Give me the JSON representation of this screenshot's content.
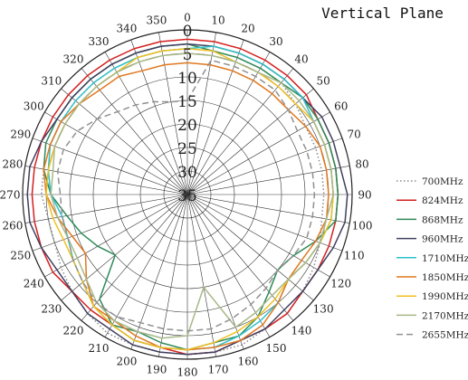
{
  "chart_data": {
    "type": "polar-line",
    "title": "Vertical Plane",
    "radial_axis": {
      "min": -35,
      "max": 0,
      "ticks": [
        0,
        5,
        10,
        15,
        20,
        25,
        30,
        35
      ]
    },
    "angle_axis": {
      "step": 10,
      "direction": "clockwise",
      "zero": "top"
    },
    "angles": [
      0,
      10,
      20,
      30,
      40,
      50,
      60,
      70,
      80,
      90,
      100,
      110,
      120,
      130,
      140,
      150,
      160,
      170,
      180,
      190,
      200,
      210,
      220,
      230,
      240,
      250,
      260,
      270,
      280,
      290,
      300,
      310,
      320,
      330,
      340,
      350
    ],
    "legend_position": "right",
    "series": [
      {
        "name": "700MHz",
        "color": "#8a8a8a",
        "dash": "dot",
        "values": [
          -4,
          -4,
          -4,
          -4,
          -4,
          -5,
          -6,
          -6,
          -6,
          -6,
          -6,
          -5,
          -4,
          -3,
          -2,
          -2,
          -1,
          -1,
          -1,
          -1,
          -1,
          -1,
          -2,
          -3,
          -4,
          -5,
          -5,
          -4,
          -4,
          -4,
          -4,
          -4,
          -4,
          -4,
          -4,
          -4
        ]
      },
      {
        "name": "824MHz",
        "color": "#d42020",
        "dash": "solid",
        "values": [
          -2,
          -2,
          -2,
          -2,
          -2,
          -2,
          -3,
          -3,
          -3,
          -3,
          -3,
          -3,
          -3,
          -3,
          -2,
          -2,
          -2,
          -1,
          -1,
          -2,
          -2,
          -3,
          -3,
          -3,
          -2,
          -2,
          -2,
          -2,
          -2,
          -2,
          -2,
          -2,
          -2,
          -2,
          -2,
          -2
        ]
      },
      {
        "name": "868MHz",
        "color": "#2e8a5a",
        "dash": "solid",
        "values": [
          -3,
          -4,
          -4,
          -4,
          -4,
          -3,
          -3,
          -3,
          -3,
          -3,
          -3,
          -6,
          -9,
          -10,
          -8,
          -5,
          -3,
          -3,
          -2,
          -3,
          -4,
          -3,
          -6,
          -15,
          -13,
          -11,
          -9,
          -6,
          -4,
          -3,
          -3,
          -3,
          -3,
          -3,
          -3,
          -3
        ]
      },
      {
        "name": "960MHz",
        "color": "#404060",
        "dash": "solid",
        "values": [
          -3,
          -3,
          -3,
          -3,
          -3,
          -3,
          -2,
          -2,
          -2,
          -1,
          -1,
          -2,
          -3,
          -3,
          -3,
          -2,
          -2,
          -1,
          -1,
          -1,
          -1,
          -2,
          -2,
          -3,
          -3,
          -2,
          -1,
          -1,
          -1,
          -2,
          -3,
          -3,
          -3,
          -3,
          -3,
          -3
        ]
      },
      {
        "name": "1710MHz",
        "color": "#30c0c8",
        "dash": "solid",
        "values": [
          -4,
          -3,
          -3,
          -3,
          -3,
          -3,
          -4,
          -4,
          -4,
          -4,
          -4,
          -5,
          -6,
          -7,
          -5,
          -4,
          -3,
          -2,
          -2,
          -2,
          -2,
          -3,
          -4,
          -6,
          -7,
          -8,
          -8,
          -6,
          -5,
          -4,
          -4,
          -4,
          -4,
          -4,
          -4,
          -4
        ]
      },
      {
        "name": "1850MHz",
        "color": "#e07820",
        "dash": "solid",
        "values": [
          -7,
          -7,
          -7,
          -7,
          -7,
          -7,
          -6,
          -5,
          -5,
          -5,
          -5,
          -6,
          -7,
          -7,
          -5,
          -3,
          -2,
          -2,
          -2,
          -2,
          -3,
          -4,
          -4,
          -7,
          -10,
          -9,
          -7,
          -5,
          -4,
          -4,
          -4,
          -5,
          -6,
          -6,
          -7,
          -7
        ]
      },
      {
        "name": "1990MHz",
        "color": "#f0c020",
        "dash": "solid",
        "values": [
          -4,
          -4,
          -5,
          -5,
          -5,
          -5,
          -4,
          -4,
          -4,
          -4,
          -4,
          -5,
          -6,
          -7,
          -6,
          -5,
          -4,
          -3,
          -2,
          -2,
          -2,
          -3,
          -4,
          -6,
          -7,
          -7,
          -6,
          -5,
          -5,
          -5,
          -5,
          -5,
          -5,
          -5,
          -4,
          -4
        ]
      },
      {
        "name": "2170MHz",
        "color": "#a8b888",
        "dash": "solid",
        "values": [
          -5,
          -5,
          -5,
          -5,
          -4,
          -4,
          -4,
          -4,
          -4,
          -4,
          -5,
          -5,
          -6,
          -7,
          -7,
          -6,
          -5,
          -15,
          -5,
          -4,
          -4,
          -4,
          -5,
          -7,
          -8,
          -8,
          -7,
          -6,
          -6,
          -5,
          -5,
          -5,
          -5,
          -5,
          -5,
          -5
        ]
      },
      {
        "name": "2655MHz",
        "color": "#909090",
        "dash": "dash",
        "values": [
          -15,
          -6,
          -6,
          -6,
          -6,
          -7,
          -8,
          -8,
          -8,
          -8,
          -8,
          -8,
          -9,
          -10,
          -9,
          -8,
          -7,
          -6,
          -6,
          -6,
          -6,
          -5,
          -5,
          -6,
          -7,
          -8,
          -8,
          -8,
          -7,
          -7,
          -8,
          -10,
          -12,
          -13,
          -14,
          -15
        ]
      }
    ]
  }
}
